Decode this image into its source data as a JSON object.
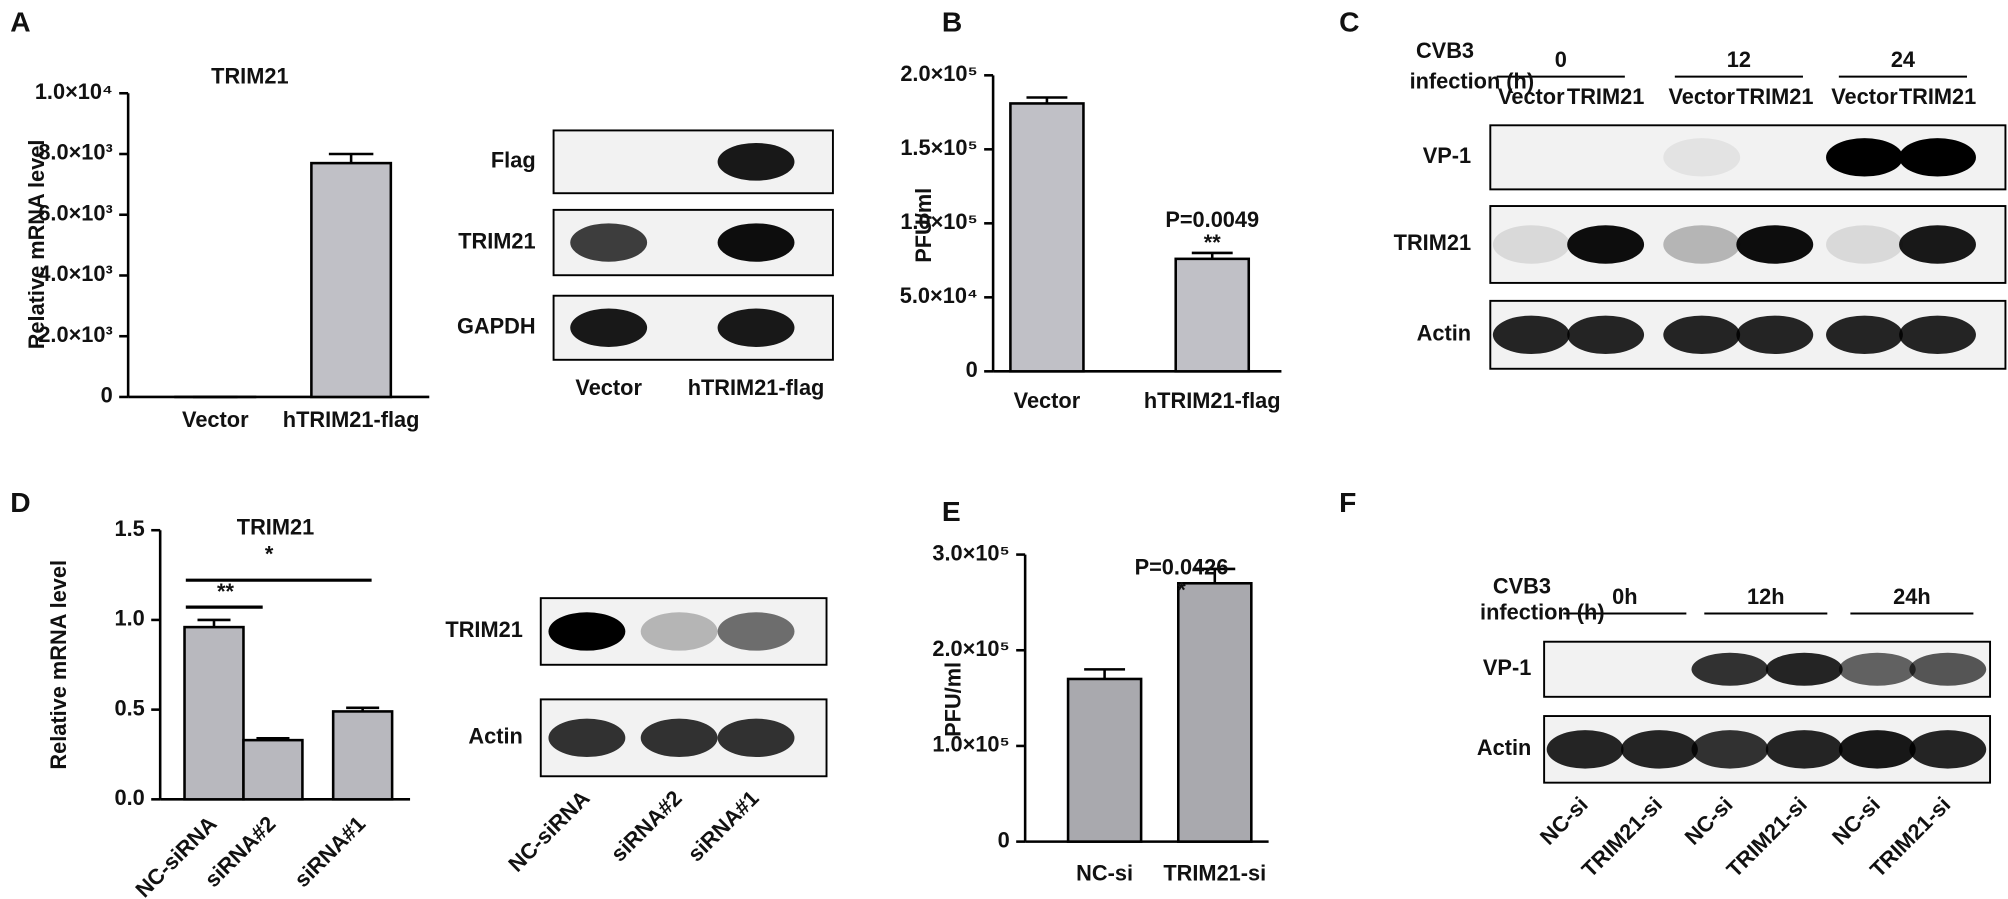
{
  "panels": [
    "A",
    "B",
    "C",
    "D",
    "E",
    "F"
  ],
  "chart_data": [
    {
      "type": "bar",
      "title": "TRIM21",
      "y_label": "Relative mRNA level",
      "categories": [
        "Vector",
        "hTRIM21-flag"
      ],
      "values": [
        1,
        7700
      ],
      "errors": [
        0,
        300
      ],
      "color": "#c0c0c6",
      "ylim": [
        0,
        10000
      ],
      "yticks": [
        0,
        {
          "value": 2000,
          "label": "2.0×10³"
        },
        {
          "value": 4000,
          "label": "4.0×10³"
        },
        {
          "value": 6000,
          "label": "6.0×10³"
        },
        {
          "value": 8000,
          "label": "8.0×10³"
        },
        {
          "value": 10000,
          "label": "1.0×10⁴"
        }
      ]
    },
    {
      "type": "bar",
      "y_label": "PFU/ml",
      "categories": [
        "Vector",
        "hTRIM21-flag"
      ],
      "values": [
        181000,
        76000
      ],
      "errors": [
        4000,
        4000
      ],
      "color": "#c0c0c6",
      "ylim": [
        0,
        200000
      ],
      "yticks": [
        0,
        {
          "value": 50000,
          "label": "5.0×10⁴"
        },
        {
          "value": 100000,
          "label": "1.0×10⁵"
        },
        {
          "value": 150000,
          "label": "1.5×10⁵"
        },
        {
          "value": 200000,
          "label": "2.0×10⁵"
        }
      ],
      "annotations": [
        "P=0.0049",
        "**"
      ]
    },
    {
      "type": "bar",
      "title": "TRIM21",
      "y_label": "Relative mRNA level",
      "categories": [
        "NC-siRNA",
        "siRNA#2",
        "siRNA#1"
      ],
      "values": [
        0.96,
        0.33,
        0.49
      ],
      "errors": [
        0.04,
        0.01,
        0.02
      ],
      "color": "#b8b8be",
      "ylim": [
        0,
        1.5
      ],
      "yticks": [
        {
          "value": 0,
          "label": "0.0"
        },
        0.5,
        {
          "value": 1,
          "label": "1.0"
        },
        1.5
      ],
      "annotations": [
        "**",
        "*"
      ]
    },
    {
      "type": "bar",
      "y_label": "PFU/ml",
      "categories": [
        "NC-si",
        "TRIM21-si"
      ],
      "values": [
        170000,
        270000
      ],
      "errors": [
        10000,
        15000
      ],
      "color": "#a9a9ae",
      "ylim": [
        0,
        300000
      ],
      "yticks": [
        0,
        {
          "value": 100000,
          "label": "1.0×10⁵"
        },
        {
          "value": 200000,
          "label": "2.0×10⁵"
        },
        {
          "value": 300000,
          "label": "3.0×10⁵"
        }
      ],
      "annotations": [
        "P=0.0426",
        "*"
      ]
    }
  ],
  "blots": [
    {
      "rows": [
        "Flag",
        "TRIM21",
        "GAPDH"
      ],
      "lanes": [
        "Vector",
        "hTRIM21-flag"
      ]
    },
    {
      "group_title": [
        "CVB3",
        "infection (h)"
      ],
      "groups": [
        "0",
        "12",
        "24"
      ],
      "rows": [
        "VP-1",
        "TRIM21",
        "Actin"
      ],
      "lanes": [
        "Vector",
        "TRIM21",
        "Vector",
        "TRIM21",
        "Vector",
        "TRIM21"
      ]
    },
    {
      "rows": [
        "TRIM21",
        "Actin"
      ],
      "lanes": [
        "NC-siRNA",
        "siRNA#2",
        "siRNA#1"
      ]
    },
    {
      "group_title": [
        "CVB3",
        "infection (h)"
      ],
      "groups": [
        "0h",
        "12h",
        "24h"
      ],
      "rows": [
        "VP-1",
        "Actin"
      ],
      "lanes": [
        "NC-si",
        "TRIM21-si",
        "NC-si",
        "TRIM21-si",
        "NC-si",
        "TRIM21-si"
      ]
    }
  ]
}
